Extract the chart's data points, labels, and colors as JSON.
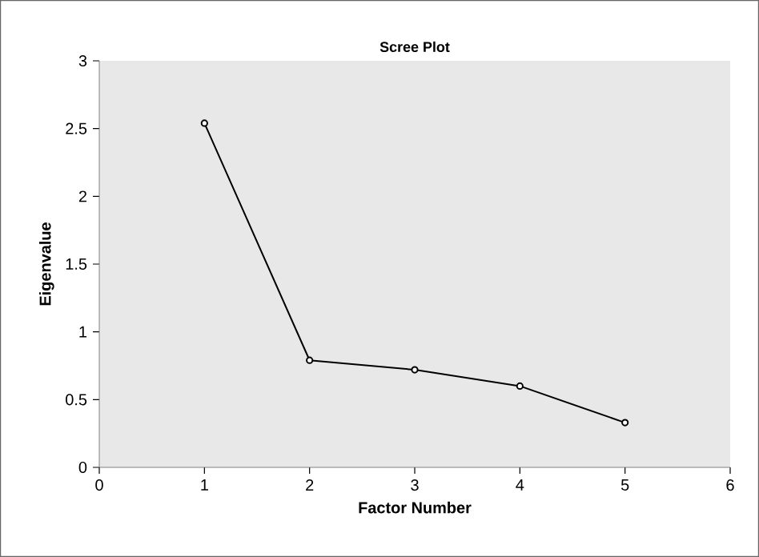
{
  "chart_data": {
    "type": "line",
    "title": "Scree Plot",
    "xlabel": "Factor Number",
    "ylabel": "Eigenvalue",
    "x": [
      1,
      2,
      3,
      4,
      5
    ],
    "series": [
      {
        "color": "#000000",
        "values": [
          2.54,
          0.79,
          0.72,
          0.6,
          0.33
        ]
      }
    ],
    "xlim": [
      0,
      6
    ],
    "xticks": [
      0,
      1,
      2,
      3,
      4,
      5,
      6
    ],
    "ylim": [
      0,
      3
    ],
    "yticks": [
      0,
      0.5,
      1,
      1.5,
      2,
      2.5,
      3
    ],
    "marker": "circle",
    "line_style": "solid",
    "grid": false
  }
}
